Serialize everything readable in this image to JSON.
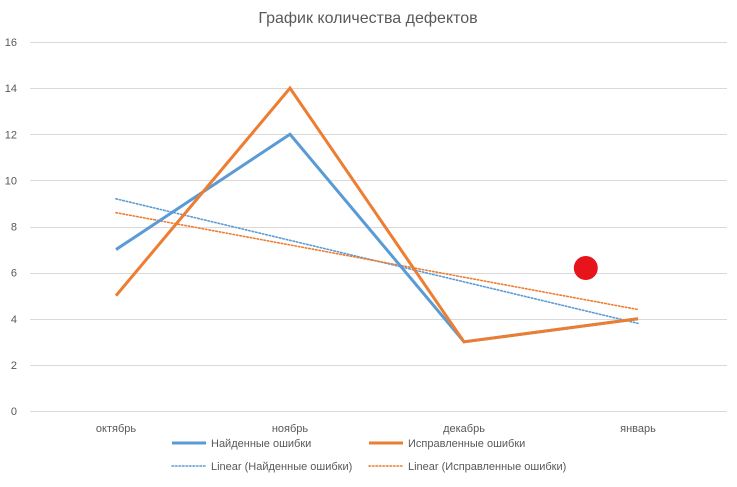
{
  "chart_data": {
    "type": "line",
    "title": "График количества дефектов",
    "xlabel": "",
    "ylabel": "",
    "categories": [
      "октябрь",
      "ноябрь",
      "декабрь",
      "январь"
    ],
    "ylim": [
      0,
      16
    ],
    "yticks": [
      0,
      2,
      4,
      6,
      8,
      10,
      12,
      14,
      16
    ],
    "grid": true,
    "legend_position": "bottom",
    "series": [
      {
        "name": "Найденные ошибки",
        "values": [
          7,
          12,
          3,
          4
        ],
        "color": "#5b9bd5",
        "style": "solid"
      },
      {
        "name": "Исправленные ошибки",
        "values": [
          5,
          14,
          3,
          4
        ],
        "color": "#ed7d31",
        "style": "solid"
      }
    ],
    "trendlines": [
      {
        "name": "Linear (Найденные ошибки)",
        "type": "linear",
        "values": [
          9.2,
          7.4,
          5.6,
          3.8
        ],
        "color": "#5b9bd5",
        "style": "dotted"
      },
      {
        "name": "Linear (Исправленные ошибки)",
        "type": "linear",
        "values": [
          8.6,
          7.2,
          5.8,
          4.4
        ],
        "color": "#ed7d31",
        "style": "dotted"
      }
    ],
    "annotations": [
      {
        "type": "marker",
        "shape": "circle",
        "color": "#e8141c",
        "x": 2.7,
        "y": 6.2
      }
    ]
  }
}
